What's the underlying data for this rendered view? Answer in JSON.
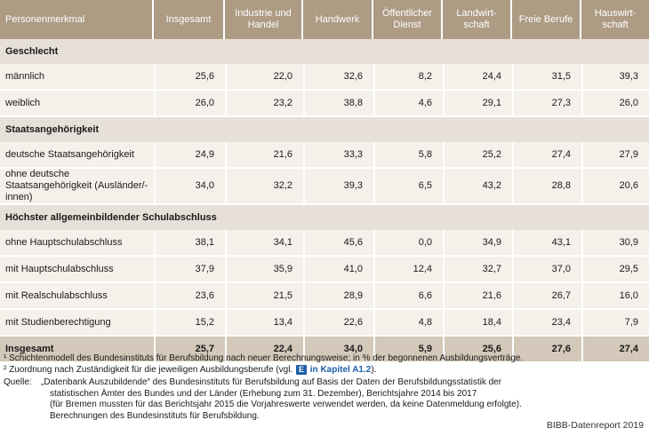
{
  "columns": [
    "Personenmerkmal",
    "Insgesamt",
    "Industrie und Handel",
    "Handwerk",
    "Öffentlicher Dienst",
    "Landwirt-schaft",
    "Freie Berufe",
    "Hauswirt-schaft"
  ],
  "sections": [
    {
      "title": "Geschlecht",
      "rows": [
        {
          "label": "männlich",
          "values": [
            "25,6",
            "22,0",
            "32,6",
            "8,2",
            "24,4",
            "31,5",
            "39,3"
          ]
        },
        {
          "label": "weiblich",
          "values": [
            "26,0",
            "23,2",
            "38,8",
            "4,6",
            "29,1",
            "27,3",
            "26,0"
          ]
        }
      ]
    },
    {
      "title": "Staatsangehörigkeit",
      "rows": [
        {
          "label": "deutsche Staatsangehörigkeit",
          "values": [
            "24,9",
            "21,6",
            "33,3",
            "5,8",
            "25,2",
            "27,4",
            "27,9"
          ]
        },
        {
          "label": "ohne deutsche Staatsangehörigkeit (Ausländer/-innen)",
          "values": [
            "34,0",
            "32,2",
            "39,3",
            "6,5",
            "43,2",
            "28,8",
            "20,6"
          ]
        }
      ]
    },
    {
      "title": "Höchster allgemeinbildender Schulabschluss",
      "rows": [
        {
          "label": "ohne Hauptschulabschluss",
          "values": [
            "38,1",
            "34,1",
            "45,6",
            "0,0",
            "34,9",
            "43,1",
            "30,9"
          ]
        },
        {
          "label": "mit Hauptschulabschluss",
          "values": [
            "37,9",
            "35,9",
            "41,0",
            "12,4",
            "32,7",
            "37,0",
            "29,5"
          ]
        },
        {
          "label": "mit Realschulabschluss",
          "values": [
            "23,6",
            "21,5",
            "28,9",
            "6,6",
            "21,6",
            "26,7",
            "16,0"
          ]
        },
        {
          "label": "mit Studienberechtigung",
          "values": [
            "15,2",
            "13,4",
            "22,6",
            "4,8",
            "18,4",
            "23,4",
            "7,9"
          ]
        }
      ]
    }
  ],
  "total": {
    "label": "Insgesamt",
    "values": [
      "25,7",
      "22,4",
      "34,0",
      "5,9",
      "25,6",
      "27,6",
      "27,4"
    ]
  },
  "footnotes": {
    "fn1": "¹ Schichtenmodell des Bundesinstituts für Berufsbildung nach neuer Berechnungsweise; in % der begonnenen Ausbildungsverträge.",
    "fn2_pre": "² Zuordnung nach Zuständigkeit für die jeweiligen Ausbildungsberufe (vgl.",
    "fn2_badge": "E",
    "fn2_link": "in Kapitel A1.2",
    "fn2_post": ").",
    "source_label": "Quelle:",
    "source_lines": [
      "„Datenbank Auszubildende“ des Bundesinstituts für Berufsbildung auf Basis der Daten der Berufsbildungsstatistik der",
      "statistischen Ämter des Bundes und der Länder (Erhebung zum 31. Dezember), Berichtsjahre 2014 bis 2017",
      "(für Bremen mussten für das Berichtsjahr 2015 die Vorjahreswerte verwendet werden, da keine Datenmeldung erfolgte).",
      "Berechnungen des Bundesinstituts für Berufsbildung."
    ]
  },
  "credit": "BIBB-Datenreport 2019"
}
